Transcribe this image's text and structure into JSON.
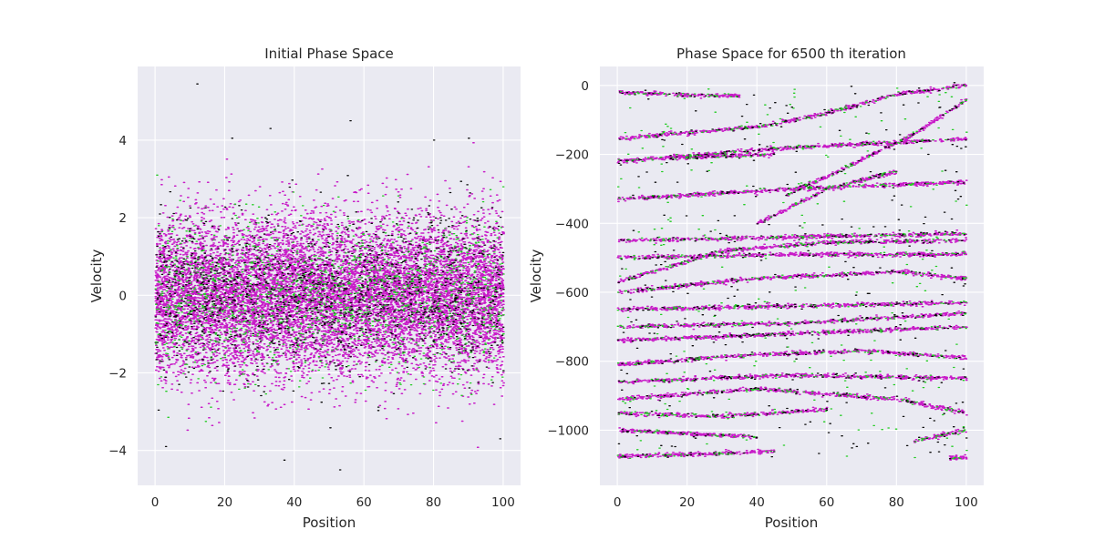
{
  "colors": {
    "axes_background": "#EAEAF2",
    "grid": "#FFFFFF",
    "text": "#262626",
    "point_fill": "#0B0B0B",
    "point_edge_primary": "#C81CC8",
    "point_edge_secondary": "#22CC22"
  },
  "chart_data": [
    {
      "type": "scatter",
      "title": "Initial Phase Space",
      "xlabel": "Position",
      "ylabel": "Velocity",
      "xlim": [
        -5,
        105
      ],
      "ylim": [
        -4.9,
        5.9
      ],
      "xticks": [
        0,
        20,
        40,
        60,
        80,
        100
      ],
      "yticks": [
        -4,
        -2,
        0,
        2,
        4
      ],
      "grid": true,
      "distribution": {
        "x_uniform": [
          0,
          100
        ],
        "y_normal_mean": 0,
        "y_normal_std": 1
      },
      "outliers": [
        {
          "x": 12,
          "y": 5.45
        },
        {
          "x": 33,
          "y": 4.3
        },
        {
          "x": 56,
          "y": 4.5
        },
        {
          "x": 22,
          "y": 4.05
        },
        {
          "x": 80,
          "y": 4.0
        },
        {
          "x": 53,
          "y": -4.5
        },
        {
          "x": 3,
          "y": -3.9
        },
        {
          "x": 37,
          "y": -4.25
        },
        {
          "x": 99,
          "y": -3.7
        },
        {
          "x": 90,
          "y": 4.05
        }
      ]
    },
    {
      "type": "scatter",
      "title": "Phase Space for 6500 th iteration",
      "xlabel": "Position",
      "ylabel": "Velocity",
      "xlim": [
        -5,
        105
      ],
      "ylim": [
        -1160,
        55
      ],
      "xticks": [
        0,
        20,
        40,
        60,
        80,
        100
      ],
      "yticks": [
        0,
        -200,
        -400,
        -600,
        -800,
        -1000
      ],
      "grid": true,
      "filaments": [
        {
          "x": [
            0,
            20,
            35
          ],
          "y": [
            -20,
            -28,
            -30
          ]
        },
        {
          "x": [
            0,
            40,
            60,
            80,
            100
          ],
          "y": [
            -155,
            -120,
            -80,
            -25,
            0
          ]
        },
        {
          "x": [
            0,
            50,
            100
          ],
          "y": [
            -220,
            -180,
            -155
          ]
        },
        {
          "x": [
            15,
            30,
            45
          ],
          "y": [
            -210,
            -205,
            -200
          ]
        },
        {
          "x": [
            48,
            65,
            85,
            100
          ],
          "y": [
            -320,
            -240,
            -140,
            -40
          ]
        },
        {
          "x": [
            40,
            50,
            60,
            80
          ],
          "y": [
            -400,
            -350,
            -300,
            -250
          ]
        },
        {
          "x": [
            0,
            50,
            100
          ],
          "y": [
            -330,
            -300,
            -280
          ]
        },
        {
          "x": [
            0,
            50,
            100
          ],
          "y": [
            -450,
            -440,
            -430
          ]
        },
        {
          "x": [
            0,
            30,
            60,
            100
          ],
          "y": [
            -570,
            -480,
            -455,
            -450
          ]
        },
        {
          "x": [
            0,
            50,
            100
          ],
          "y": [
            -500,
            -490,
            -490
          ]
        },
        {
          "x": [
            0,
            40,
            80,
            100
          ],
          "y": [
            -600,
            -560,
            -540,
            -560
          ]
        },
        {
          "x": [
            0,
            50,
            100
          ],
          "y": [
            -650,
            -640,
            -630
          ]
        },
        {
          "x": [
            0,
            50,
            100
          ],
          "y": [
            -700,
            -690,
            -660
          ]
        },
        {
          "x": [
            0,
            50,
            100
          ],
          "y": [
            -740,
            -720,
            -700
          ]
        },
        {
          "x": [
            0,
            40,
            70,
            100
          ],
          "y": [
            -810,
            -780,
            -770,
            -790
          ]
        },
        {
          "x": [
            0,
            50,
            100
          ],
          "y": [
            -860,
            -840,
            -850
          ]
        },
        {
          "x": [
            0,
            40,
            80,
            100
          ],
          "y": [
            -910,
            -880,
            -910,
            -950
          ]
        },
        {
          "x": [
            0,
            30,
            60
          ],
          "y": [
            -950,
            -960,
            -940
          ]
        },
        {
          "x": [
            0,
            20,
            40
          ],
          "y": [
            -1000,
            -1010,
            -1020
          ]
        },
        {
          "x": [
            0,
            25,
            45
          ],
          "y": [
            -1075,
            -1070,
            -1060
          ]
        },
        {
          "x": [
            85,
            100
          ],
          "y": [
            -1030,
            -1000
          ]
        },
        {
          "x": [
            95,
            100
          ],
          "y": [
            -1080,
            -1080
          ]
        }
      ]
    }
  ]
}
